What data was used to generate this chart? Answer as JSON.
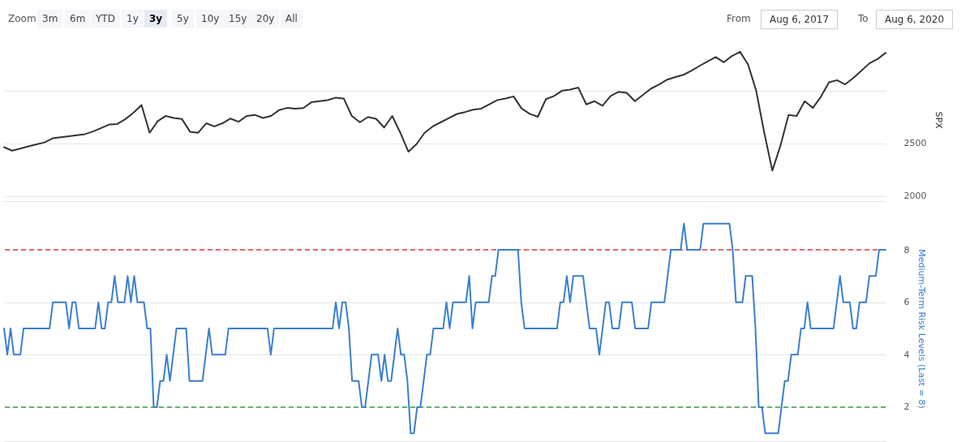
{
  "chart_data": [
    {
      "type": "line",
      "annotations": [
        "Zoom",
        "3m",
        "6m",
        "YTD",
        "1y",
        "3y",
        "5y",
        "10y",
        "15y",
        "20y",
        "All",
        "From",
        "Aug 6, 2017",
        "To",
        "Aug 6, 2020"
      ],
      "ylabel": "SPX",
      "ylim": [
        1950,
        3500
      ],
      "yticks": [
        2000,
        2500,
        {
          "value": 3000,
          "label": null
        }
      ],
      "grid": "y",
      "tick_labels": "y",
      "categories": [
        null,
        null,
        null,
        null,
        null,
        null,
        null,
        null,
        null,
        null,
        null,
        null,
        null,
        null,
        null,
        null,
        null,
        null,
        null,
        null,
        null,
        null,
        null,
        null,
        null,
        null,
        null,
        null,
        null,
        null,
        null,
        null,
        null,
        null,
        null,
        null,
        null,
        null,
        null,
        null,
        null,
        null,
        null,
        null,
        null,
        null,
        null,
        null,
        null,
        null,
        null,
        null,
        null,
        null,
        null,
        null,
        null,
        null,
        null,
        null,
        null,
        null,
        null,
        null,
        null,
        null,
        null,
        null,
        null,
        null,
        null,
        null,
        null,
        null,
        null,
        null,
        null,
        null,
        null,
        null,
        null,
        null,
        null,
        null,
        null,
        null,
        null,
        null,
        null,
        null,
        null,
        null,
        null,
        null,
        null,
        null,
        null,
        null,
        null,
        null,
        null,
        null,
        null,
        null,
        null,
        null,
        null,
        null,
        null,
        null
      ],
      "series": [
        {
          "color": "#333333",
          "values": [
            2463,
            2430,
            2450,
            2470,
            2490,
            2508,
            2547,
            2557,
            2567,
            2577,
            2587,
            2612,
            2645,
            2678,
            2683,
            2730,
            2790,
            2864,
            2600,
            2710,
            2760,
            2740,
            2730,
            2610,
            2600,
            2690,
            2660,
            2690,
            2735,
            2705,
            2760,
            2770,
            2740,
            2760,
            2815,
            2836,
            2830,
            2835,
            2890,
            2900,
            2910,
            2934,
            2926,
            2760,
            2700,
            2750,
            2733,
            2650,
            2760,
            2600,
            2420,
            2492,
            2600,
            2660,
            2700,
            2740,
            2779,
            2797,
            2820,
            2830,
            2870,
            2911,
            2925,
            2946,
            2830,
            2780,
            2752,
            2920,
            2950,
            3000,
            3010,
            3029,
            2870,
            2900,
            2857,
            2950,
            2990,
            2980,
            2900,
            2960,
            3020,
            3060,
            3105,
            3130,
            3151,
            3190,
            3236,
            3280,
            3320,
            3270,
            3330,
            3370,
            3250,
            3000,
            2600,
            2240,
            2477,
            2770,
            2760,
            2900,
            2836,
            2942,
            3080,
            3100,
            3060,
            3120,
            3190,
            3260,
            3300,
            3360
          ]
        }
      ]
    },
    {
      "type": "line",
      "ylabel": "Medium-Term Risk Levels (Last = 8)",
      "ylim": [
        0.7,
        9.3
      ],
      "yticks": [
        2,
        4,
        6,
        8
      ],
      "grid": "y",
      "tick_labels": "y",
      "ref_lines": [
        {
          "axis": "y",
          "value": 8,
          "color": "#e04040",
          "line_style": "dashed"
        },
        {
          "axis": "y",
          "value": 2,
          "color": "#3c9c3c",
          "line_style": "dashed"
        }
      ],
      "categories": [
        null,
        null,
        null,
        null,
        null,
        null,
        null,
        null,
        null,
        null,
        null,
        null,
        null,
        null,
        null,
        null,
        null,
        null,
        null,
        null,
        null,
        null,
        null,
        null,
        null,
        null,
        null,
        null,
        null,
        null,
        null,
        null,
        null,
        null,
        null,
        null,
        null,
        null,
        null,
        null,
        null,
        null,
        null,
        null,
        null,
        null,
        null,
        null,
        null,
        null,
        null,
        null,
        null,
        null,
        null,
        null,
        null,
        null,
        null,
        null,
        null,
        null,
        null,
        null,
        null,
        null,
        null,
        null,
        null,
        null,
        null,
        null,
        null,
        null,
        null,
        null,
        null,
        null,
        null,
        null,
        null,
        null,
        null,
        null,
        null,
        null,
        null,
        null,
        null,
        null,
        null,
        null,
        null,
        null,
        null,
        null,
        null,
        null,
        null,
        null,
        null,
        null,
        null,
        null,
        null,
        null,
        null,
        null,
        null,
        null,
        null,
        null,
        null,
        null,
        null,
        null,
        null,
        null,
        null,
        null,
        null,
        null,
        null,
        null,
        null,
        null,
        null,
        null,
        null,
        null,
        null,
        null,
        null,
        null,
        null,
        null,
        null,
        null,
        null,
        null,
        null,
        null,
        null,
        null,
        null,
        null,
        null,
        null,
        null,
        null,
        null,
        null,
        null,
        null,
        null,
        null,
        null,
        null,
        null,
        null,
        null,
        null,
        null,
        null,
        null,
        null,
        null,
        null,
        null,
        null,
        null,
        null,
        null,
        null,
        null,
        null,
        null,
        null,
        null,
        null,
        null,
        null,
        null,
        null,
        null,
        null,
        null,
        null,
        null,
        null,
        null,
        null,
        null,
        null,
        null,
        null,
        null,
        null,
        null,
        null,
        null,
        null,
        null,
        null,
        null,
        null,
        null,
        null,
        null,
        null,
        null,
        null,
        null,
        null,
        null,
        null,
        null,
        null,
        null,
        null,
        null,
        null,
        null,
        null,
        null,
        null,
        null,
        null,
        null,
        null,
        null,
        null,
        null,
        null,
        null,
        null,
        null,
        null,
        null,
        null,
        null,
        null,
        null,
        null,
        null,
        null,
        null,
        null,
        null,
        null,
        null,
        null,
        null,
        null,
        null,
        null,
        null,
        null,
        null,
        null,
        null,
        null,
        null,
        null,
        null,
        null,
        null,
        null,
        null,
        null,
        null,
        null
      ],
      "series": [
        {
          "color": "#3a7fcf",
          "values": [
            5,
            4,
            5,
            4,
            4,
            4,
            5,
            5,
            5,
            5,
            5,
            5,
            5,
            5,
            5,
            6,
            6,
            6,
            6,
            6,
            5,
            6,
            6,
            5,
            5,
            5,
            5,
            5,
            5,
            6,
            5,
            5,
            6,
            6,
            7,
            6,
            6,
            6,
            7,
            6,
            7,
            6,
            6,
            6,
            5,
            5,
            2,
            2,
            3,
            3,
            4,
            3,
            4,
            5,
            5,
            5,
            5,
            3,
            3,
            3,
            3,
            3,
            4,
            5,
            4,
            4,
            4,
            4,
            4,
            5,
            5,
            5,
            5,
            5,
            5,
            5,
            5,
            5,
            5,
            5,
            5,
            5,
            4,
            5,
            5,
            5,
            5,
            5,
            5,
            5,
            5,
            5,
            5,
            5,
            5,
            5,
            5,
            5,
            5,
            5,
            5,
            5,
            6,
            5,
            6,
            6,
            5,
            3,
            3,
            3,
            2,
            2,
            3,
            4,
            4,
            4,
            3,
            4,
            3,
            3,
            4,
            5,
            4,
            4,
            3,
            1,
            1,
            2,
            2,
            3,
            4,
            4,
            5,
            5,
            5,
            5,
            6,
            5,
            6,
            6,
            6,
            6,
            6,
            7,
            5,
            6,
            6,
            6,
            6,
            6,
            7,
            7,
            8,
            8,
            8,
            8,
            8,
            8,
            8,
            6,
            5,
            5,
            5,
            5,
            5,
            5,
            5,
            5,
            5,
            5,
            5,
            6,
            6,
            7,
            6,
            7,
            7,
            7,
            7,
            6,
            5,
            5,
            5,
            4,
            5,
            6,
            6,
            5,
            5,
            5,
            6,
            6,
            6,
            6,
            5,
            5,
            5,
            5,
            5,
            6,
            6,
            6,
            6,
            6,
            7,
            8,
            8,
            8,
            8,
            9,
            8,
            8,
            8,
            8,
            8,
            9,
            9,
            9,
            9,
            9,
            9,
            9,
            9,
            9,
            8,
            6,
            6,
            6,
            7,
            7,
            7,
            5,
            2,
            2,
            1,
            1,
            1,
            1,
            1,
            2,
            3,
            3,
            4,
            4,
            4,
            5,
            5,
            6,
            5,
            5,
            5,
            5,
            5,
            5,
            5,
            5,
            6,
            7,
            6,
            6,
            6,
            5,
            5,
            6,
            6,
            6,
            7,
            7,
            7,
            8,
            8,
            8
          ]
        }
      ]
    }
  ]
}
